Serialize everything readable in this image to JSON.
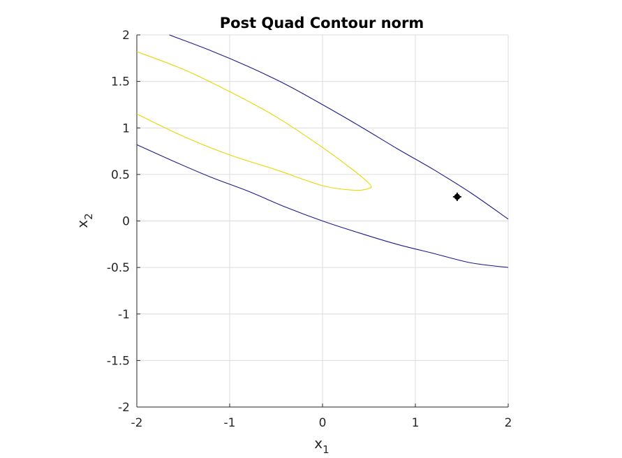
{
  "chart_data": {
    "type": "line",
    "title": "Post Quad Contour norm",
    "xlabel": {
      "base": "x",
      "sub": "1"
    },
    "ylabel": {
      "base": "x",
      "sub": "2"
    },
    "xlim": [
      -2,
      2
    ],
    "ylim": [
      -2,
      2
    ],
    "xticks": [
      -2,
      -1,
      0,
      1,
      2
    ],
    "yticks": [
      -2,
      -1.5,
      -1,
      -0.5,
      0,
      0.5,
      1,
      1.5,
      2
    ],
    "xtick_labels": [
      "-2",
      "-1",
      "0",
      "1",
      "2"
    ],
    "ytick_labels": [
      "-2",
      "-1.5",
      "-1",
      "-0.5",
      "0",
      "0.5",
      "1",
      "1.5",
      "2"
    ],
    "grid": true,
    "colors": {
      "outer": "#1a1a8c",
      "inner": "#e6d800",
      "grid": "#dcdcdc",
      "axis": "#262626",
      "marker": "#000000"
    },
    "series": [
      {
        "color": "#1a1a8c",
        "x": [
          -1.65,
          -1.2,
          -0.8,
          -0.4,
          0.0,
          0.4,
          0.8,
          1.2,
          1.6,
          2.0
        ],
        "y": [
          2.0,
          1.83,
          1.66,
          1.47,
          1.25,
          1.02,
          0.78,
          0.55,
          0.3,
          0.02
        ]
      },
      {
        "color": "#1a1a8c",
        "x": [
          -2.0,
          -1.6,
          -1.2,
          -0.8,
          -0.4,
          0.0,
          0.4,
          0.8,
          1.2,
          1.6,
          2.0
        ],
        "y": [
          0.82,
          0.64,
          0.47,
          0.32,
          0.15,
          0.0,
          -0.13,
          -0.25,
          -0.35,
          -0.45,
          -0.5
        ]
      },
      {
        "color": "#e6d800",
        "x": [
          -2.0,
          -1.5,
          -1.0,
          -0.5,
          0.0,
          0.3,
          0.45,
          0.52,
          0.5,
          0.35,
          0.0,
          -0.5,
          -1.0,
          -1.5,
          -2.0
        ],
        "y": [
          1.82,
          1.63,
          1.39,
          1.12,
          0.79,
          0.57,
          0.45,
          0.38,
          0.35,
          0.33,
          0.38,
          0.55,
          0.71,
          0.91,
          1.15
        ]
      }
    ],
    "marker": {
      "x": 1.45,
      "y": 0.26
    }
  }
}
